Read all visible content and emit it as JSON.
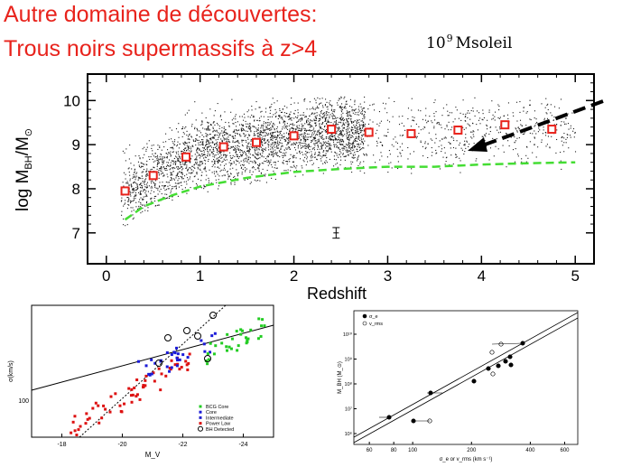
{
  "slide": {
    "title_line1": "Autre domaine de découvertes:",
    "title_line2": "Trous noirs supermassifs à  z>4",
    "annotation_base": "10",
    "annotation_exponent": "9",
    "annotation_unit": "Msoleil"
  },
  "chart_data": [
    {
      "type": "scatter",
      "title": "",
      "xlabel": "Redshift",
      "ylabel": "log M_BH/M_⊙",
      "xlim": [
        -0.2,
        5.2
      ],
      "ylim": [
        6.3,
        10.6
      ],
      "xticks": [
        "0",
        "1",
        "2",
        "3",
        "4",
        "5"
      ],
      "yticks": [
        "7",
        "8",
        "9",
        "10"
      ],
      "binned_means": {
        "x": [
          0.2,
          0.5,
          0.85,
          1.25,
          1.6,
          2.0,
          2.4,
          2.8,
          3.25,
          3.75,
          4.25,
          4.75
        ],
        "y": [
          7.95,
          8.3,
          8.72,
          8.95,
          9.05,
          9.2,
          9.35,
          9.28,
          9.25,
          9.33,
          9.45,
          9.35
        ]
      },
      "detection_limit": {
        "x": [
          0.2,
          0.4,
          0.7,
          1.0,
          1.5,
          2.0,
          2.5,
          3.0,
          3.5,
          4.0,
          4.5,
          5.0
        ],
        "y": [
          7.3,
          7.6,
          7.85,
          8.05,
          8.25,
          8.38,
          8.45,
          8.5,
          8.5,
          8.55,
          8.58,
          8.6
        ]
      },
      "error_bar": {
        "x": 2.45,
        "y": 7.0,
        "err": 0.12
      },
      "arrow_color": "#000000",
      "means_color": "#e8231c",
      "limit_color": "#44dd33"
    },
    {
      "type": "scatter",
      "xlabel": "M_V",
      "ylabel": "σ(km/s)",
      "xticks": [
        "-18",
        "-20",
        "-22",
        "-24"
      ],
      "yticks": [
        "100"
      ],
      "legend": [
        "BCG Core",
        "Core",
        "Intermediate",
        "Power Law",
        "BH Detected"
      ],
      "legend_colors": [
        "#22cc22",
        "#1a1ad8",
        "#2222cc",
        "#dd1111",
        "#000000"
      ],
      "legend_position": "bottom-right"
    },
    {
      "type": "scatter",
      "xlabel": "σ_e or v_rms (km s⁻¹)",
      "ylabel": "M_BH (M_⊙)",
      "xticks": [
        "60",
        "80",
        "100",
        "200",
        "400",
        "600"
      ],
      "yticks": [
        "10⁶",
        "10⁷",
        "10⁸",
        "10⁹",
        "10¹⁰"
      ],
      "legend": [
        "σ_e",
        "v_rms"
      ],
      "legend_position": "top-left"
    }
  ]
}
